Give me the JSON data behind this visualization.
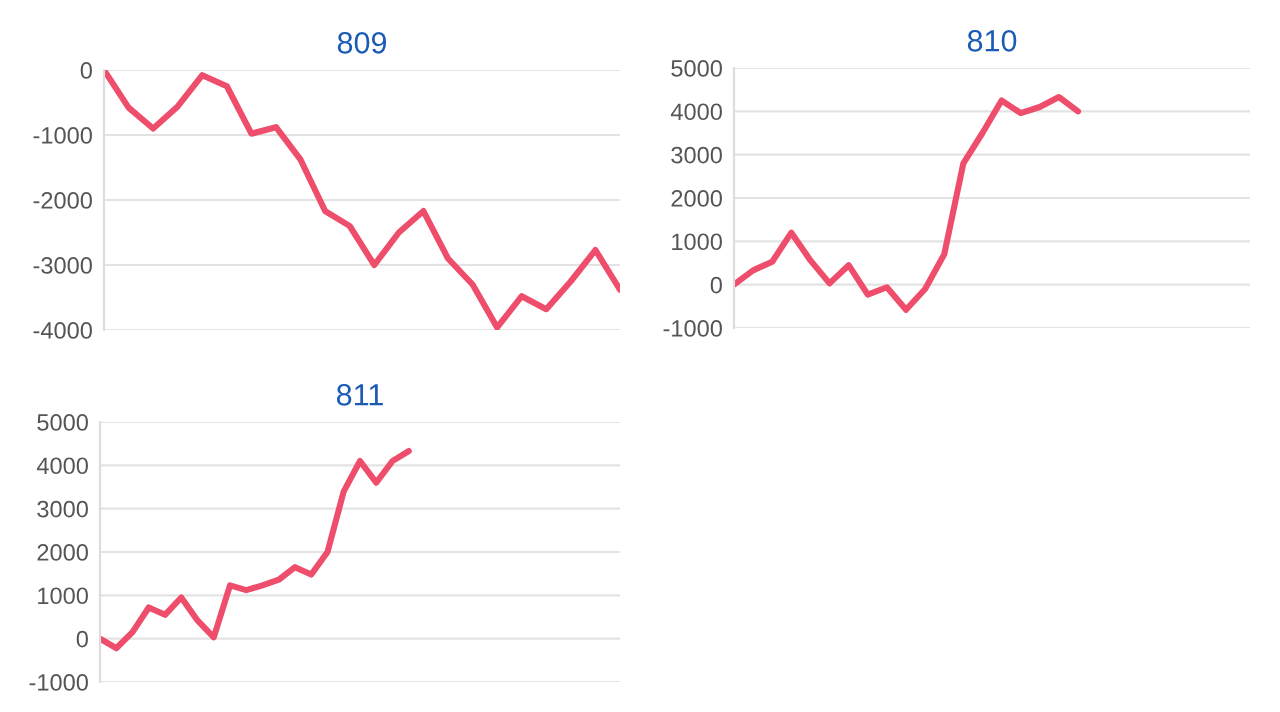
{
  "chart_data": [
    {
      "type": "line",
      "title": "809",
      "categories": [
        null,
        null,
        null,
        null,
        null,
        null,
        null,
        null,
        null,
        null,
        null,
        null,
        null,
        null,
        null,
        null,
        null,
        null,
        null,
        null,
        null,
        null
      ],
      "series": [
        {
          "color": "#ee4d6b",
          "values": [
            0,
            -580,
            -900,
            -560,
            -80,
            -250,
            -980,
            -880,
            -1380,
            -2170,
            -2400,
            -3000,
            -2500,
            -2170,
            -2900,
            -3300,
            -3960,
            -3480,
            -3680,
            -3250,
            -2770,
            -3380
          ]
        }
      ],
      "ylim": [
        -4000,
        0
      ],
      "yticks": [
        -4000,
        -3000,
        -2000,
        -1000,
        0
      ],
      "grid": "y",
      "legend": false,
      "marker": "none",
      "line_style": "solid"
    },
    {
      "type": "line",
      "title": "810",
      "categories": [
        null,
        null,
        null,
        null,
        null,
        null,
        null,
        null,
        null,
        null,
        null,
        null,
        null,
        null,
        null,
        null,
        null,
        null,
        null,
        null,
        null,
        null,
        null,
        null,
        null,
        null,
        null,
        null
      ],
      "series": [
        {
          "color": "#ee4d6b",
          "values": [
            0,
            330,
            530,
            1200,
            560,
            30,
            450,
            -230,
            -60,
            -580,
            -100,
            700,
            2800,
            3500,
            4250,
            3960,
            4100,
            4330,
            4000,
            null,
            null,
            null,
            null,
            null,
            null,
            null,
            null,
            null
          ]
        }
      ],
      "ylim": [
        -1000,
        5000
      ],
      "yticks": [
        -1000,
        0,
        1000,
        2000,
        3000,
        4000,
        5000
      ],
      "grid": "y",
      "legend": false,
      "marker": "none",
      "line_style": "solid"
    },
    {
      "type": "line",
      "title": "811",
      "categories": [
        null,
        null,
        null,
        null,
        null,
        null,
        null,
        null,
        null,
        null,
        null,
        null,
        null,
        null,
        null,
        null,
        null,
        null,
        null,
        null,
        null,
        null,
        null,
        null,
        null,
        null,
        null,
        null,
        null,
        null,
        null,
        null,
        null
      ],
      "series": [
        {
          "color": "#ee4d6b",
          "values": [
            0,
            -220,
            150,
            720,
            550,
            950,
            420,
            30,
            1230,
            1120,
            1230,
            1360,
            1650,
            1480,
            2000,
            3400,
            4100,
            3600,
            4100,
            4330,
            null,
            null,
            null,
            null,
            null,
            null,
            null,
            null,
            null,
            null,
            null,
            null,
            null
          ]
        }
      ],
      "ylim": [
        -1000,
        5000
      ],
      "yticks": [
        -1000,
        0,
        1000,
        2000,
        3000,
        4000,
        5000
      ],
      "grid": "y",
      "legend": false,
      "marker": "none",
      "line_style": "solid"
    }
  ]
}
